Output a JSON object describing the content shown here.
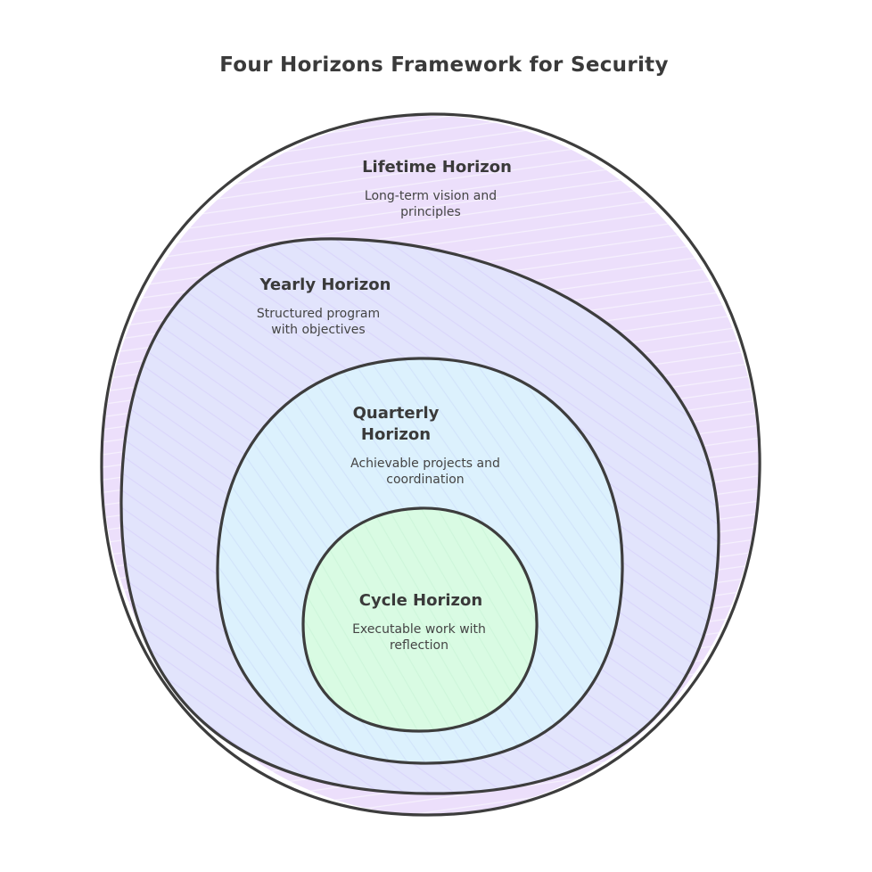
{
  "title": "Four Horizons Framework for Security",
  "colors": {
    "lifetime_fill": "#eadcfb",
    "yearly_fill": "#e1e3fc",
    "quarterly_fill": "#dcf0fd",
    "cycle_fill": "#d8fbe2",
    "stroke": "#3d3d3d",
    "text": "#3a3a3a"
  },
  "horizons": [
    {
      "title_lines": [
        "Lifetime Horizon"
      ],
      "description_lines": [
        "Long-term vision and",
        "principles"
      ]
    },
    {
      "title_lines": [
        "Yearly Horizon"
      ],
      "description_lines": [
        "Structured program",
        "with objectives"
      ]
    },
    {
      "title_lines": [
        "Quarterly",
        "Horizon"
      ],
      "description_lines": [
        "Achievable projects and",
        "coordination"
      ]
    },
    {
      "title_lines": [
        "Cycle Horizon"
      ],
      "description_lines": [
        "Executable work with",
        "reflection"
      ]
    }
  ]
}
